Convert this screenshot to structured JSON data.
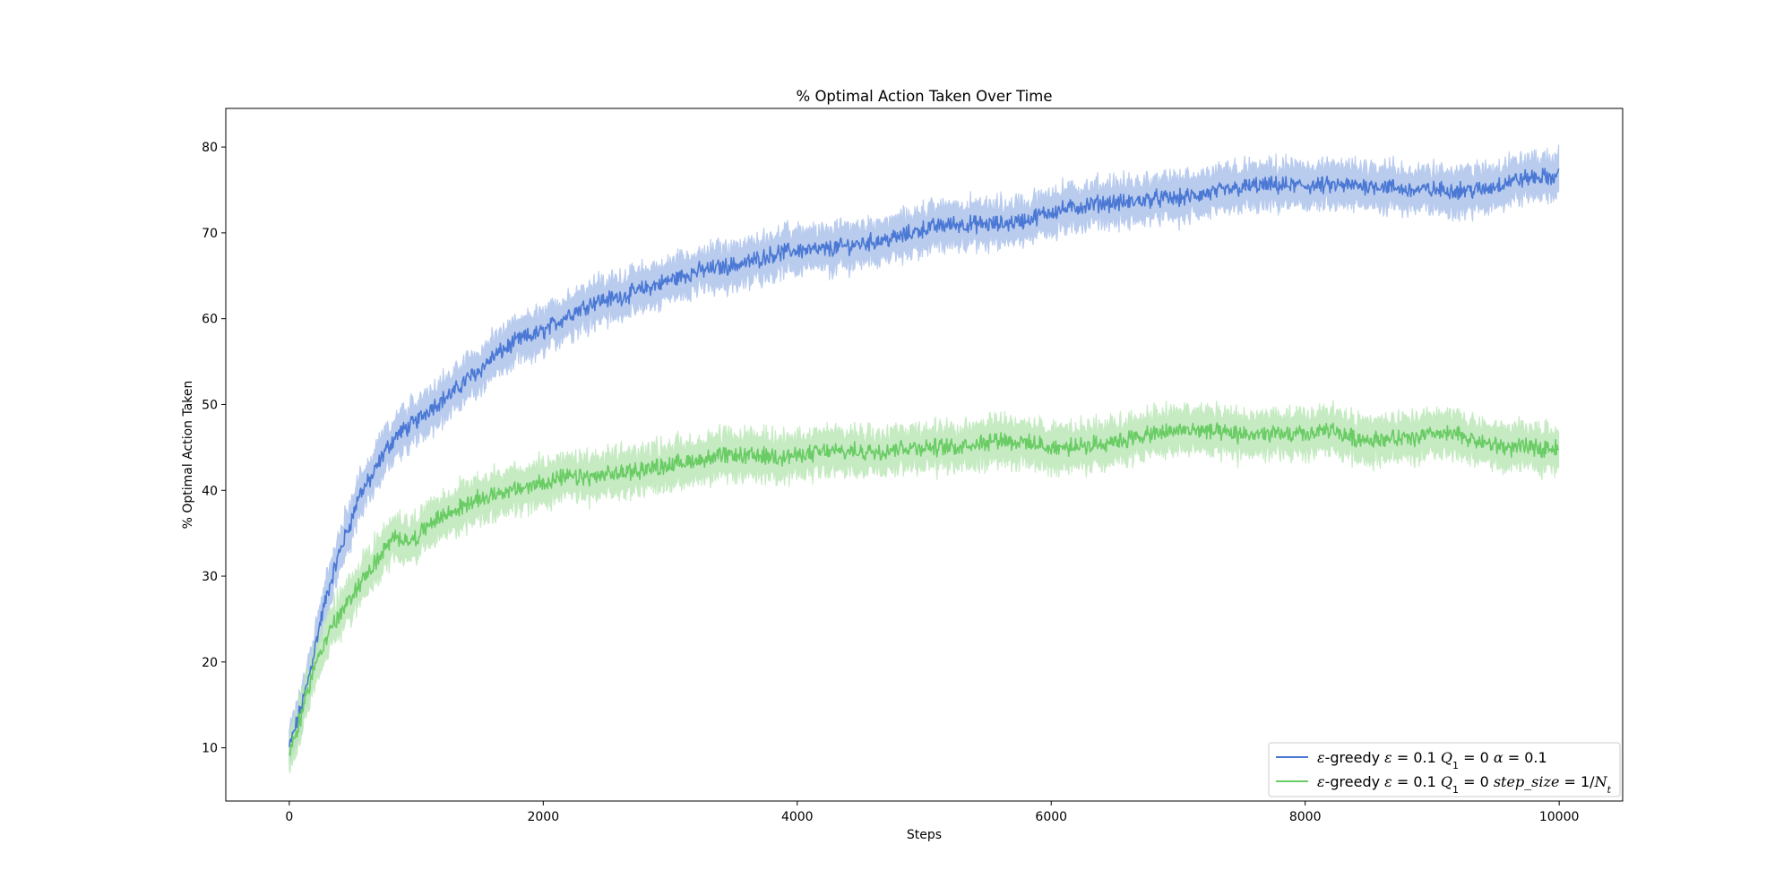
{
  "chart_data": {
    "type": "line",
    "title": "% Optimal Action Taken Over Time",
    "xlabel": "Steps",
    "ylabel": "% Optimal Action Taken",
    "xlim": [
      -500,
      10500
    ],
    "ylim": [
      3.8,
      84.5
    ],
    "xticks": [
      0,
      2000,
      4000,
      6000,
      8000,
      10000
    ],
    "yticks": [
      10,
      20,
      30,
      40,
      50,
      60,
      70,
      80
    ],
    "grid": false,
    "legend_position": "bottom-right",
    "series": [
      {
        "name": "ε-greedy ε = 0.1 Q₁ = 0 α = 0.1",
        "legend_parts": [
          {
            "t": "ε",
            "i": true
          },
          {
            "t": "-greedy ",
            "i": false
          },
          {
            "t": "ε",
            "i": true
          },
          {
            "t": " = 0.1 ",
            "i": false
          },
          {
            "t": "Q",
            "i": true
          },
          {
            "t": "1",
            "i": false,
            "sub": true
          },
          {
            "t": " = 0 ",
            "i": false
          },
          {
            "t": "α",
            "i": true
          },
          {
            "t": " = 0.1",
            "i": false
          }
        ],
        "color": "#4a78d4",
        "band_color": "#aec4ec",
        "x": [
          0,
          50,
          100,
          150,
          200,
          250,
          300,
          350,
          400,
          450,
          500,
          550,
          600,
          650,
          700,
          750,
          800,
          850,
          900,
          950,
          1000,
          1100,
          1200,
          1300,
          1400,
          1500,
          1600,
          1700,
          1800,
          1900,
          2000,
          2200,
          2400,
          2600,
          2800,
          3000,
          3200,
          3400,
          3600,
          3800,
          4000,
          4200,
          4400,
          4600,
          4800,
          5000,
          5200,
          5400,
          5600,
          5800,
          6000,
          6200,
          6400,
          6600,
          6800,
          7000,
          7200,
          7400,
          7600,
          7800,
          8000,
          8200,
          8400,
          8600,
          8800,
          9000,
          9200,
          9400,
          9600,
          9800,
          10000
        ],
        "y": [
          10,
          12.5,
          15,
          18,
          21.5,
          25,
          28,
          30.5,
          33,
          35,
          37,
          39.5,
          40.5,
          41.5,
          43,
          44.5,
          45.5,
          46.5,
          47,
          47.5,
          48,
          49.5,
          50.5,
          51.5,
          53,
          54,
          55.5,
          56.5,
          57.5,
          58,
          58.5,
          60.5,
          62,
          62.5,
          63.5,
          64.5,
          65.5,
          66,
          66.5,
          67.5,
          68,
          68,
          68.5,
          69,
          69.5,
          70.5,
          71,
          71,
          71,
          71.5,
          72.5,
          73,
          73.5,
          73.5,
          74,
          74,
          74.5,
          75,
          75.5,
          75.5,
          75.5,
          75.5,
          75.5,
          75.5,
          75,
          75,
          75,
          75,
          76,
          76.5,
          76.5
        ]
      },
      {
        "name": "ε-greedy ε = 0.1 Q₁ = 0 step_size = 1/Nₜ",
        "legend_parts": [
          {
            "t": "ε",
            "i": true
          },
          {
            "t": "-greedy ",
            "i": false
          },
          {
            "t": "ε",
            "i": true
          },
          {
            "t": " = 0.1 ",
            "i": false
          },
          {
            "t": "Q",
            "i": true
          },
          {
            "t": "1",
            "i": false,
            "sub": true
          },
          {
            "t": " = 0 ",
            "i": false
          },
          {
            "t": "step_size",
            "i": true
          },
          {
            "t": " = 1/",
            "i": false
          },
          {
            "t": "N",
            "i": true
          },
          {
            "t": "t",
            "i": true,
            "sub": true
          }
        ],
        "color": "#6acc64",
        "band_color": "#bde8b9",
        "x": [
          0,
          50,
          100,
          150,
          200,
          250,
          300,
          350,
          400,
          450,
          500,
          550,
          600,
          650,
          700,
          750,
          800,
          850,
          900,
          950,
          1000,
          1100,
          1200,
          1300,
          1400,
          1500,
          1600,
          1700,
          1800,
          1900,
          2000,
          2200,
          2400,
          2600,
          2800,
          3000,
          3200,
          3400,
          3600,
          3800,
          4000,
          4200,
          4400,
          4600,
          4800,
          5000,
          5200,
          5400,
          5600,
          5800,
          6000,
          6200,
          6400,
          6600,
          6800,
          7000,
          7200,
          7400,
          7600,
          7800,
          8000,
          8200,
          8400,
          8600,
          8800,
          9000,
          9200,
          9400,
          9600,
          9800,
          10000
        ],
        "y": [
          9.5,
          11.5,
          14,
          17,
          19.5,
          21.5,
          23,
          24.5,
          25.5,
          26.5,
          28,
          29,
          30,
          31,
          32,
          33,
          34,
          34.5,
          34.5,
          34,
          34.5,
          36,
          37,
          37.5,
          38.5,
          39,
          39.5,
          40,
          40,
          40.5,
          41,
          41.5,
          41.5,
          42,
          42.5,
          43,
          43.5,
          44,
          44,
          44,
          44,
          44.5,
          44.5,
          44.5,
          45,
          45,
          45,
          45.5,
          46,
          45.5,
          45,
          45,
          45.5,
          46,
          46.5,
          47,
          47,
          46.5,
          46.5,
          46.5,
          46.5,
          47,
          46,
          46,
          46,
          46.5,
          46.5,
          45.5,
          45,
          45,
          45
        ]
      }
    ]
  }
}
